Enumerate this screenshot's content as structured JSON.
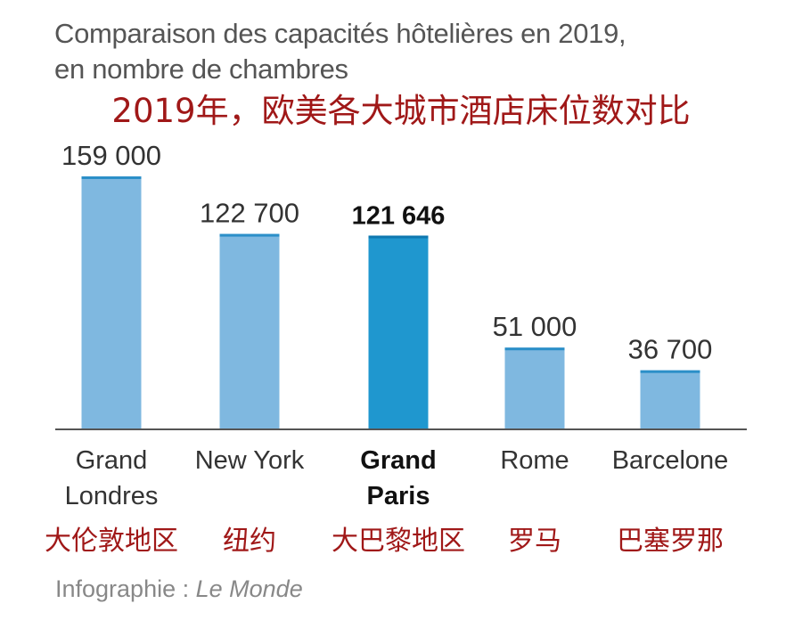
{
  "title": "Comparaison des capacités hôtelières en 2019,",
  "subtitle": "en nombre de chambres",
  "annotation_title": "2019年，欧美各大城市酒店床位数对比",
  "source": {
    "prefix": "Infographie : ",
    "publication": "Le Monde"
  },
  "colors": {
    "bar": "#7fb8e0",
    "bar_top": "#2b8fc8",
    "highlight": "#1f97cf",
    "highlight_top": "#0f78b0",
    "axis": "#555555",
    "text": "#333333",
    "cn_label": "#a01818",
    "muted": "#555555"
  },
  "chart_data": {
    "type": "bar",
    "title": "Comparaison des capacités hôtelières en 2019, en nombre de chambres",
    "categories": [
      "Grand Londres",
      "New York",
      "Grand Paris",
      "Rome",
      "Barcelone"
    ],
    "values": [
      159000,
      122700,
      121646,
      51000,
      36700
    ],
    "value_labels": [
      "159 000",
      "122 700",
      "121 646",
      "51 000",
      "36 700"
    ],
    "category_label_lines": [
      [
        "Grand",
        "Londres"
      ],
      [
        "New York"
      ],
      [
        "Grand",
        "Paris"
      ],
      [
        "Rome"
      ],
      [
        "Barcelone"
      ]
    ],
    "translated_labels": [
      "大伦敦地区",
      "纽约",
      "大巴黎地区",
      "罗马",
      "巴塞罗那"
    ],
    "highlight_index": 2,
    "ylim": [
      0,
      159000
    ],
    "grid": false,
    "legend": "none"
  }
}
